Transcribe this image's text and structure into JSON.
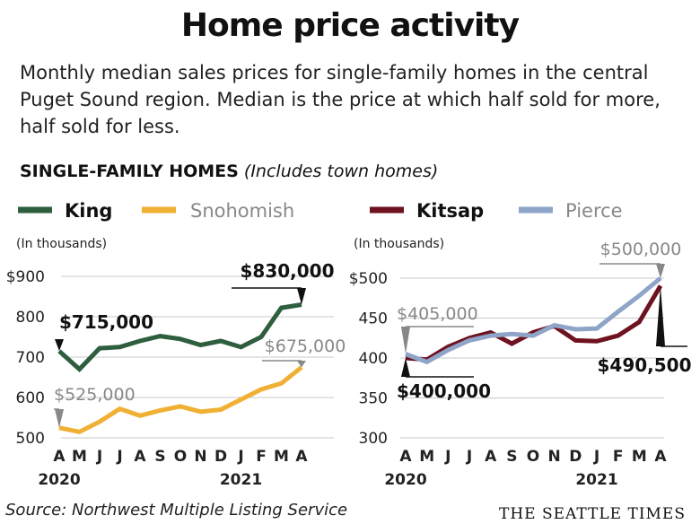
{
  "title": "Home price activity",
  "subtitle": "Monthly median sales prices for single-family homes in the central Puget Sound region. Median is the price at which half sold for more, half sold for less.",
  "section_label": "SINGLE-FAMILY HOMES",
  "section_note": "(Includes town homes)",
  "source": "Source: Northwest Multiple Listing Service",
  "brand": "THE SEATTLE TIMES",
  "colors": {
    "King": "#2e5e3e",
    "Snohomish": "#f0b033",
    "Kitsap": "#6e1220",
    "Pierce": "#8ea4c8"
  },
  "chart_data": [
    {
      "type": "line",
      "unit_label": "(In thousands)",
      "x": [
        "A",
        "M",
        "J",
        "J",
        "A",
        "S",
        "O",
        "N",
        "D",
        "J",
        "F",
        "M",
        "A"
      ],
      "year_labels": [
        {
          "label": "2020",
          "index": 0
        },
        {
          "label": "2021",
          "index": 9
        }
      ],
      "ylim": [
        500,
        900
      ],
      "y_ticks": [
        "$900",
        "800",
        "700",
        "600",
        "500"
      ],
      "y_tick_values": [
        900,
        800,
        700,
        600,
        500
      ],
      "series": [
        {
          "name": "King",
          "values": [
            715,
            670,
            722,
            725,
            740,
            752,
            745,
            730,
            740,
            725,
            750,
            822,
            830
          ]
        },
        {
          "name": "Snohomish",
          "values": [
            525,
            515,
            540,
            572,
            555,
            568,
            578,
            565,
            570,
            595,
            620,
            635,
            675
          ]
        }
      ],
      "annotations": [
        {
          "text": "$715,000",
          "series": 0,
          "index": 0
        },
        {
          "text": "$830,000",
          "series": 0,
          "index": 12
        },
        {
          "text": "$525,000",
          "series": 1,
          "index": 0
        },
        {
          "text": "$675,000",
          "series": 1,
          "index": 12
        }
      ]
    },
    {
      "type": "line",
      "unit_label": "(In thousands)",
      "x": [
        "A",
        "M",
        "J",
        "J",
        "A",
        "S",
        "O",
        "N",
        "D",
        "J",
        "F",
        "M",
        "A"
      ],
      "year_labels": [
        {
          "label": "2020",
          "index": 0
        },
        {
          "label": "2021",
          "index": 9
        }
      ],
      "ylim": [
        300,
        500
      ],
      "y_ticks": [
        "$500",
        "450",
        "400",
        "350",
        "300"
      ],
      "y_tick_values": [
        500,
        450,
        400,
        350,
        300
      ],
      "series": [
        {
          "name": "Kitsap",
          "values": [
            400,
            398,
            414,
            425,
            432,
            418,
            432,
            440,
            422,
            421,
            428,
            445,
            490.5
          ]
        },
        {
          "name": "Pierce",
          "values": [
            405,
            395,
            410,
            422,
            428,
            430,
            428,
            441,
            436,
            437,
            458,
            478,
            500
          ]
        }
      ],
      "annotations": [
        {
          "text": "$405,000",
          "series": 1,
          "index": 0
        },
        {
          "text": "$400,000",
          "series": 0,
          "index": 0
        },
        {
          "text": "$500,000",
          "series": 1,
          "index": 12
        },
        {
          "text": "$490,500",
          "series": 0,
          "index": 12
        }
      ]
    }
  ]
}
